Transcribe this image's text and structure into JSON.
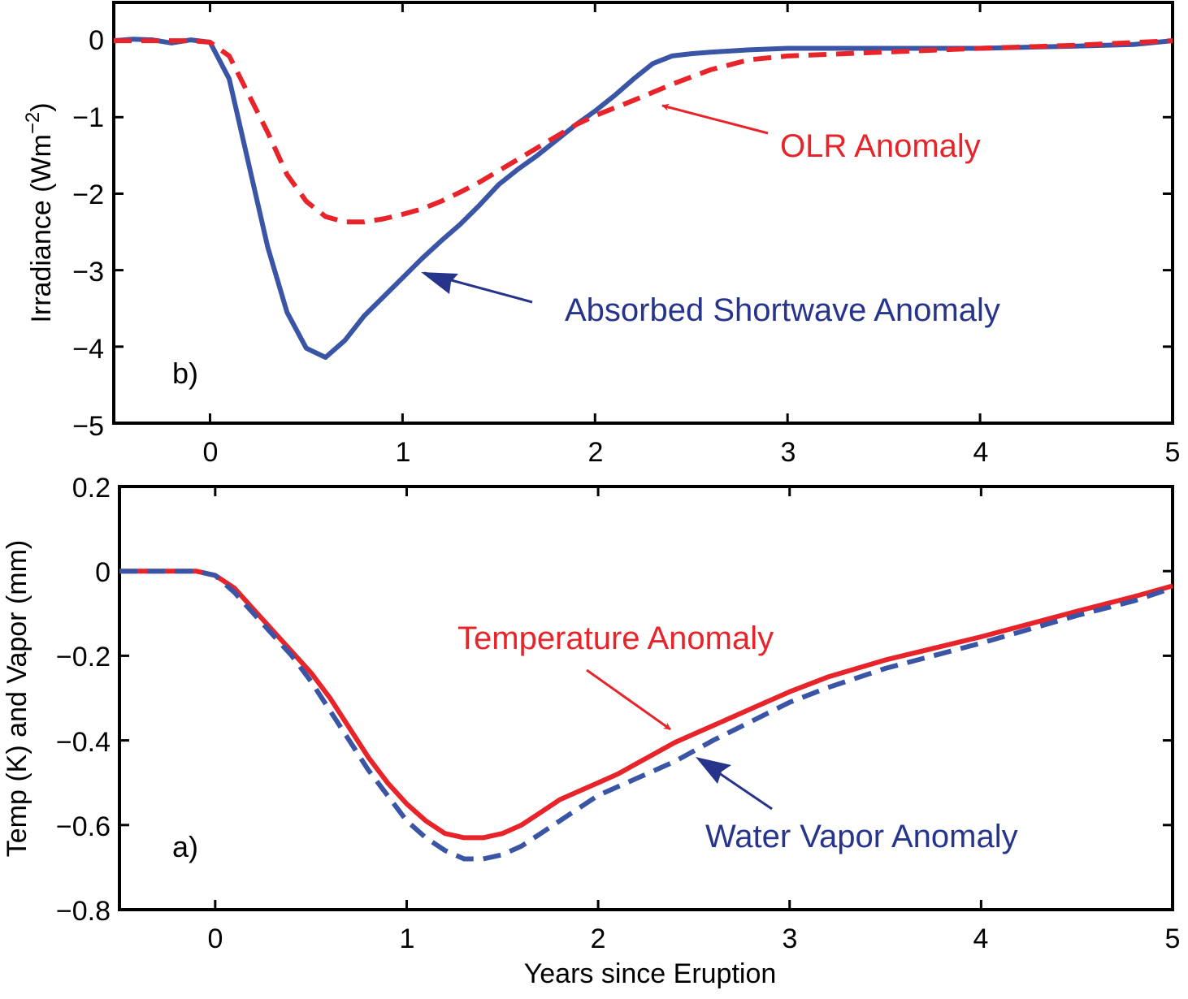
{
  "chart_data": [
    {
      "type": "line",
      "panel_tag": "b)",
      "ylabel": "Irradiance (Wm",
      "ylabel_sup": "−2",
      "ylabel_close": ")",
      "xlim": [
        -0.5,
        5
      ],
      "ylim": [
        -5,
        0.5
      ],
      "x_ticks": [
        "0",
        "1",
        "2",
        "3",
        "4",
        "5"
      ],
      "x_tick_values": [
        0,
        1,
        2,
        3,
        4,
        5
      ],
      "y_ticks": [
        "0",
        "−1",
        "−2",
        "−3",
        "−4",
        "−5"
      ],
      "y_tick_values": [
        0,
        -1,
        -2,
        -3,
        -4,
        -5
      ],
      "grid": false,
      "series": [
        {
          "name": "Absorbed Shortwave Anomaly",
          "color": "#3a55a6",
          "style": "solid",
          "x": [
            -0.5,
            -0.4,
            -0.3,
            -0.2,
            -0.1,
            0.0,
            0.1,
            0.2,
            0.3,
            0.4,
            0.5,
            0.6,
            0.7,
            0.8,
            0.9,
            1.0,
            1.1,
            1.2,
            1.3,
            1.4,
            1.5,
            1.6,
            1.7,
            1.8,
            1.9,
            2.0,
            2.1,
            2.2,
            2.3,
            2.4,
            2.5,
            2.6,
            2.8,
            3.0,
            3.5,
            4.0,
            4.5,
            4.8,
            5.0
          ],
          "y": [
            0.0,
            0.02,
            0.01,
            -0.03,
            0.01,
            -0.02,
            -0.5,
            -1.6,
            -2.7,
            -3.55,
            -4.02,
            -4.14,
            -3.92,
            -3.6,
            -3.35,
            -3.1,
            -2.85,
            -2.62,
            -2.4,
            -2.15,
            -1.88,
            -1.68,
            -1.5,
            -1.3,
            -1.1,
            -0.92,
            -0.72,
            -0.5,
            -0.3,
            -0.2,
            -0.17,
            -0.15,
            -0.12,
            -0.1,
            -0.1,
            -0.1,
            -0.07,
            -0.05,
            0.0
          ]
        },
        {
          "name": "OLR Anomaly",
          "color": "#e8242b",
          "style": "dashed",
          "x": [
            -0.5,
            -0.3,
            -0.1,
            0.0,
            0.1,
            0.2,
            0.3,
            0.4,
            0.5,
            0.6,
            0.7,
            0.8,
            0.9,
            1.0,
            1.1,
            1.2,
            1.3,
            1.4,
            1.5,
            1.6,
            1.7,
            1.8,
            1.9,
            2.0,
            2.2,
            2.4,
            2.6,
            2.8,
            3.0,
            3.5,
            4.0,
            4.5,
            5.0
          ],
          "y": [
            0.0,
            0.0,
            0.0,
            -0.02,
            -0.2,
            -0.7,
            -1.2,
            -1.75,
            -2.1,
            -2.3,
            -2.37,
            -2.37,
            -2.33,
            -2.27,
            -2.2,
            -2.1,
            -1.98,
            -1.85,
            -1.7,
            -1.55,
            -1.4,
            -1.25,
            -1.1,
            -0.98,
            -0.78,
            -0.57,
            -0.38,
            -0.25,
            -0.2,
            -0.15,
            -0.1,
            -0.06,
            0.0
          ]
        }
      ],
      "annotations": [
        {
          "text": "OLR Anomaly",
          "color": "#e8242b",
          "points_to": [
            2.35,
            -0.85
          ]
        },
        {
          "text": "Absorbed Shortwave Anomaly",
          "color": "#27348b",
          "points_to": [
            1.15,
            -3.05
          ]
        }
      ]
    },
    {
      "type": "line",
      "panel_tag": "a)",
      "xlabel": "Years since Eruption",
      "ylabel": "Temp (K) and Vapor (mm)",
      "xlim": [
        -0.5,
        5
      ],
      "ylim": [
        -0.8,
        0.2
      ],
      "x_ticks": [
        "0",
        "1",
        "2",
        "3",
        "4",
        "5"
      ],
      "x_tick_values": [
        0,
        1,
        2,
        3,
        4,
        5
      ],
      "y_ticks": [
        "0.2",
        "0",
        "−0.2",
        "−0.4",
        "−0.6",
        "−0.8"
      ],
      "y_tick_values": [
        0.2,
        0,
        -0.2,
        -0.4,
        -0.6,
        -0.8
      ],
      "grid": false,
      "series": [
        {
          "name": "Temperature Anomaly",
          "color": "#e8242b",
          "style": "solid",
          "x": [
            -0.5,
            -0.3,
            -0.1,
            0.0,
            0.1,
            0.2,
            0.3,
            0.4,
            0.5,
            0.6,
            0.7,
            0.8,
            0.9,
            1.0,
            1.1,
            1.2,
            1.3,
            1.4,
            1.5,
            1.6,
            1.7,
            1.8,
            1.9,
            2.0,
            2.1,
            2.2,
            2.3,
            2.4,
            2.5,
            2.6,
            2.8,
            3.0,
            3.2,
            3.5,
            4.0,
            4.5,
            4.8,
            5.0
          ],
          "y": [
            0.0,
            0.0,
            0.0,
            -0.01,
            -0.04,
            -0.09,
            -0.14,
            -0.19,
            -0.24,
            -0.3,
            -0.37,
            -0.44,
            -0.5,
            -0.55,
            -0.59,
            -0.62,
            -0.63,
            -0.63,
            -0.62,
            -0.6,
            -0.57,
            -0.54,
            -0.52,
            -0.5,
            -0.48,
            -0.455,
            -0.43,
            -0.405,
            -0.385,
            -0.365,
            -0.325,
            -0.285,
            -0.25,
            -0.21,
            -0.155,
            -0.095,
            -0.06,
            -0.035
          ]
        },
        {
          "name": "Water Vapor Anomaly",
          "color": "#3a55a6",
          "style": "dashed",
          "x": [
            -0.5,
            -0.3,
            -0.1,
            0.0,
            0.1,
            0.2,
            0.3,
            0.4,
            0.5,
            0.6,
            0.7,
            0.8,
            0.9,
            1.0,
            1.1,
            1.2,
            1.3,
            1.4,
            1.5,
            1.6,
            1.7,
            1.8,
            1.9,
            2.0,
            2.2,
            2.4,
            2.6,
            2.8,
            3.0,
            3.2,
            3.5,
            4.0,
            4.5,
            4.8,
            5.0
          ],
          "y": [
            0.0,
            0.0,
            0.0,
            -0.01,
            -0.05,
            -0.1,
            -0.15,
            -0.2,
            -0.26,
            -0.33,
            -0.4,
            -0.47,
            -0.53,
            -0.59,
            -0.63,
            -0.66,
            -0.68,
            -0.68,
            -0.67,
            -0.65,
            -0.62,
            -0.59,
            -0.56,
            -0.53,
            -0.49,
            -0.45,
            -0.4,
            -0.355,
            -0.31,
            -0.275,
            -0.23,
            -0.17,
            -0.105,
            -0.07,
            -0.04
          ]
        }
      ],
      "annotations": [
        {
          "text": "Temperature Anomaly",
          "color": "#e8242b",
          "points_to": [
            2.45,
            -0.39
          ]
        },
        {
          "text": "Water Vapor Anomaly",
          "color": "#27348b",
          "points_to": [
            2.55,
            -0.45
          ]
        }
      ]
    }
  ]
}
